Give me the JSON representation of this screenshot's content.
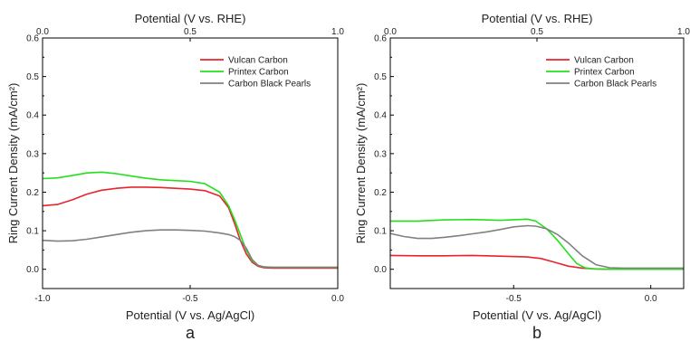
{
  "chart_data": [
    {
      "type": "line",
      "panel_label": "a",
      "xlabel": "Potential (V vs. Ag/AgCl)",
      "x2label": "Potential (V vs. RHE)",
      "ylabel": "Ring Current Density (mA/cm²)",
      "xlim": [
        -1.0,
        0.0
      ],
      "ylim": [
        -0.05,
        0.6
      ],
      "x2lim": [
        0.0,
        1.0
      ],
      "xticks": [
        -1.0,
        -0.5,
        0.0
      ],
      "xtick_labels": [
        "-1.0",
        "-0.5",
        "0.0"
      ],
      "x2ticks": [
        0.0,
        0.5,
        1.0
      ],
      "x2tick_labels": [
        "0.0",
        "0.5",
        "1.0"
      ],
      "yticks": [
        0.0,
        0.1,
        0.2,
        0.3,
        0.4,
        0.5,
        0.6
      ],
      "ytick_labels": [
        "0.0",
        "0.1",
        "0.2",
        "0.3",
        "0.4",
        "0.5",
        "0.6"
      ],
      "legend_position": "top-right",
      "series": [
        {
          "name": "Vulcan Carbon",
          "color": "#e8242b",
          "x": [
            -1.0,
            -0.95,
            -0.9,
            -0.85,
            -0.8,
            -0.75,
            -0.7,
            -0.65,
            -0.6,
            -0.55,
            -0.5,
            -0.45,
            -0.4,
            -0.37,
            -0.35,
            -0.33,
            -0.31,
            -0.29,
            -0.27,
            -0.25,
            -0.22,
            -0.2,
            -0.1,
            0.0
          ],
          "y": [
            0.165,
            0.168,
            0.18,
            0.195,
            0.205,
            0.21,
            0.213,
            0.213,
            0.212,
            0.21,
            0.208,
            0.204,
            0.19,
            0.16,
            0.12,
            0.075,
            0.04,
            0.018,
            0.008,
            0.004,
            0.003,
            0.003,
            0.003,
            0.003
          ]
        },
        {
          "name": "Printex Carbon",
          "color": "#22e01e",
          "x": [
            -1.0,
            -0.95,
            -0.9,
            -0.85,
            -0.8,
            -0.75,
            -0.7,
            -0.65,
            -0.6,
            -0.55,
            -0.5,
            -0.45,
            -0.4,
            -0.37,
            -0.35,
            -0.33,
            -0.31,
            -0.29,
            -0.27,
            -0.25,
            -0.22,
            -0.2,
            -0.1,
            0.0
          ],
          "y": [
            0.235,
            0.237,
            0.243,
            0.25,
            0.252,
            0.248,
            0.242,
            0.236,
            0.232,
            0.23,
            0.228,
            0.222,
            0.2,
            0.165,
            0.13,
            0.09,
            0.05,
            0.022,
            0.01,
            0.006,
            0.005,
            0.005,
            0.005,
            0.005
          ]
        },
        {
          "name": "Carbon Black Pearls",
          "color": "#808080",
          "x": [
            -1.0,
            -0.95,
            -0.9,
            -0.85,
            -0.8,
            -0.75,
            -0.7,
            -0.65,
            -0.6,
            -0.55,
            -0.5,
            -0.45,
            -0.4,
            -0.37,
            -0.35,
            -0.33,
            -0.31,
            -0.29,
            -0.27,
            -0.25,
            -0.22,
            -0.2,
            -0.1,
            0.0
          ],
          "y": [
            0.075,
            0.073,
            0.074,
            0.078,
            0.084,
            0.09,
            0.096,
            0.1,
            0.102,
            0.102,
            0.101,
            0.099,
            0.094,
            0.09,
            0.085,
            0.075,
            0.055,
            0.025,
            0.01,
            0.006,
            0.005,
            0.005,
            0.005,
            0.005
          ]
        }
      ]
    },
    {
      "type": "line",
      "panel_label": "b",
      "xlabel": "Potential (V vs. Ag/AgCl)",
      "x2label": "Potential (V vs. RHE)",
      "ylabel": "Ring Current Density (mA/cm²)",
      "xlim": [
        -0.95,
        0.12
      ],
      "ylim": [
        -0.05,
        0.6
      ],
      "x2lim": [
        0.0,
        1.0
      ],
      "xticks": [
        -0.5,
        0.0
      ],
      "xtick_labels": [
        "-0.5",
        "0.0"
      ],
      "x2ticks": [
        0.0,
        0.5,
        1.0
      ],
      "x2tick_labels": [
        "0.0",
        "0.5",
        "1.0"
      ],
      "yticks": [
        0.0,
        0.1,
        0.2,
        0.3,
        0.4,
        0.5,
        0.6
      ],
      "ytick_labels": [
        "0.0",
        "0.1",
        "0.2",
        "0.3",
        "0.4",
        "0.5",
        "0.6"
      ],
      "legend_position": "top-right",
      "series": [
        {
          "name": "Vulcan Carbon",
          "color": "#e8242b",
          "x": [
            -0.95,
            -0.85,
            -0.75,
            -0.65,
            -0.55,
            -0.45,
            -0.4,
            -0.35,
            -0.3,
            -0.25,
            -0.2,
            -0.15,
            -0.1,
            0.0,
            0.12
          ],
          "y": [
            0.036,
            0.035,
            0.035,
            0.036,
            0.034,
            0.032,
            0.028,
            0.018,
            0.008,
            0.003,
            0.001,
            0.0,
            0.0,
            0.0,
            0.0
          ]
        },
        {
          "name": "Printex Carbon",
          "color": "#22e01e",
          "x": [
            -0.95,
            -0.85,
            -0.75,
            -0.65,
            -0.55,
            -0.45,
            -0.42,
            -0.38,
            -0.34,
            -0.3,
            -0.27,
            -0.24,
            -0.21,
            -0.15,
            0.0,
            0.12
          ],
          "y": [
            0.125,
            0.125,
            0.128,
            0.129,
            0.127,
            0.13,
            0.125,
            0.105,
            0.075,
            0.04,
            0.015,
            0.004,
            0.001,
            0.0,
            0.0,
            0.0
          ]
        },
        {
          "name": "Carbon Black Pearls",
          "color": "#808080",
          "x": [
            -0.95,
            -0.9,
            -0.85,
            -0.8,
            -0.75,
            -0.7,
            -0.65,
            -0.6,
            -0.55,
            -0.5,
            -0.45,
            -0.42,
            -0.38,
            -0.34,
            -0.3,
            -0.25,
            -0.2,
            -0.15,
            -0.1,
            0.0,
            0.12
          ],
          "y": [
            0.093,
            0.085,
            0.08,
            0.08,
            0.083,
            0.087,
            0.092,
            0.097,
            0.103,
            0.11,
            0.113,
            0.112,
            0.105,
            0.09,
            0.068,
            0.035,
            0.012,
            0.004,
            0.003,
            0.003,
            0.003
          ]
        }
      ]
    }
  ]
}
